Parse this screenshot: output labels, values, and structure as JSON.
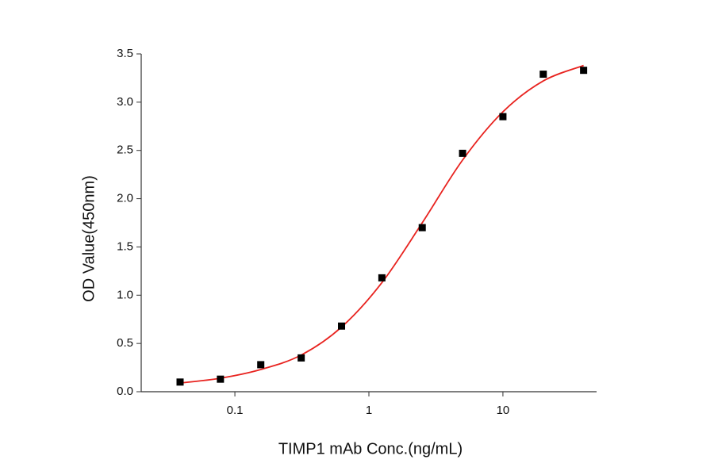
{
  "chart_data": {
    "type": "scatter",
    "x_label": "TIMP1 mAb Conc.(ng/mL)",
    "y_label": "OD Value(450nm)",
    "xscale": "log",
    "xlim": [
      0.02,
      50
    ],
    "xticks": [
      0.1,
      1,
      10
    ],
    "ylim": [
      0,
      3.5
    ],
    "yticks": [
      {
        "value": 0,
        "label": "0.0"
      },
      0.5,
      {
        "value": 1,
        "label": "1.0"
      },
      1.5,
      {
        "value": 2,
        "label": "2.0"
      },
      2.5,
      {
        "value": 3,
        "label": "3.0"
      },
      3.5
    ],
    "series": [
      {
        "style": "line",
        "color": "#e8231f",
        "x": [
          0.039,
          0.078,
          0.156,
          0.3125,
          0.625,
          1.25,
          2.5,
          5,
          10,
          20,
          40
        ],
        "values": [
          0.09,
          0.14,
          0.23,
          0.38,
          0.67,
          1.13,
          1.75,
          2.4,
          2.9,
          3.22,
          3.38
        ]
      },
      {
        "style": "markers",
        "color": "#000000",
        "x": [
          0.039,
          0.078,
          0.156,
          0.3125,
          0.625,
          1.25,
          2.5,
          5,
          10,
          20,
          40
        ],
        "values": [
          0.1,
          0.13,
          0.28,
          0.35,
          0.68,
          1.18,
          1.7,
          2.47,
          2.85,
          3.29,
          3.33
        ]
      }
    ]
  }
}
